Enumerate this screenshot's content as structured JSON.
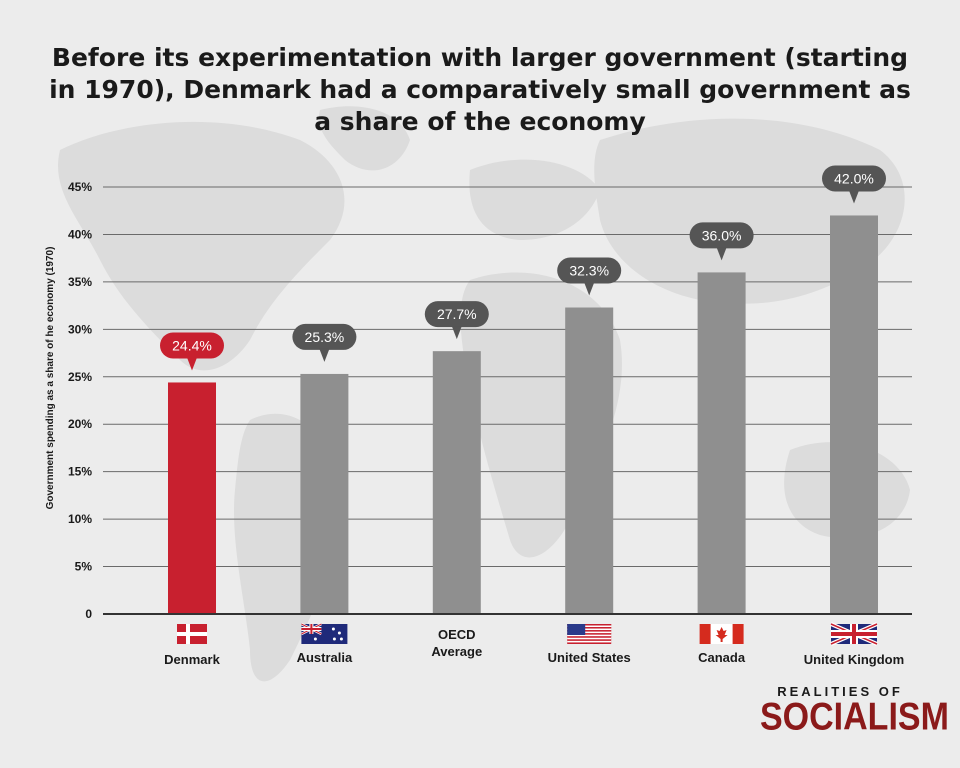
{
  "colors": {
    "highlight_bar": "#c8202f",
    "bar": "#8f8f8f",
    "bubble_dark": "#555555",
    "brand_red": "#8b1a1a"
  },
  "chart_data": {
    "type": "bar",
    "title": "Before its experimentation with larger government (starting in 1970), Denmark had a comparatively small government as a share of the economy",
    "ylabel": "Government spending as a share of he economy (1970)",
    "xlabel": "",
    "categories": [
      "Denmark",
      "Australia",
      "OECD Average",
      "United States",
      "Canada",
      "United Kingdom"
    ],
    "values": [
      24.4,
      25.3,
      27.7,
      32.3,
      36.0,
      42.0
    ],
    "value_labels": [
      "24.4%",
      "25.3%",
      "27.7%",
      "32.3%",
      "36.0%",
      "42.0%"
    ],
    "flags": [
      "flag-denmark",
      "flag-australia",
      "",
      "flag-united-states",
      "flag-canada",
      "flag-united-kingdom"
    ],
    "highlight_index": 0,
    "ylim": [
      0,
      45
    ],
    "yticks": [
      0,
      5,
      10,
      15,
      20,
      25,
      30,
      35,
      40,
      45
    ],
    "ytick_labels": [
      "0",
      "5%",
      "10%",
      "15%",
      "20%",
      "25%",
      "30%",
      "35%",
      "40%",
      "45%"
    ],
    "grid": true,
    "legend": "none"
  },
  "brand": {
    "top": "REALITIES OF",
    "main": "SOCIALISM"
  }
}
